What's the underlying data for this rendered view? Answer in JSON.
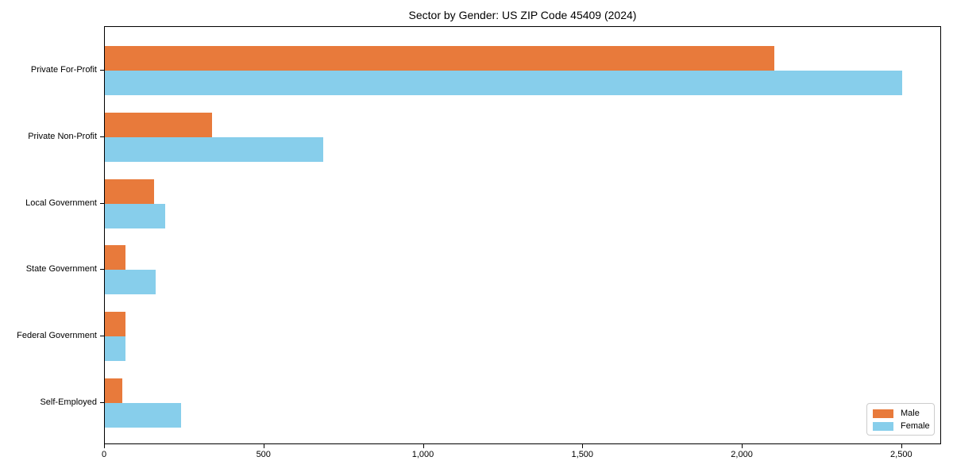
{
  "title": "Sector by Gender: US ZIP Code 45409 (2024)",
  "colors": {
    "male": "#e87a3b",
    "female": "#87ceeb",
    "axis": "#000000",
    "legend_border": "#cccccc",
    "background": "#ffffff"
  },
  "legend": {
    "position": "lower right",
    "items": [
      {
        "label": "Male",
        "color": "#e87a3b"
      },
      {
        "label": "Female",
        "color": "#87ceeb"
      }
    ]
  },
  "chart_data": {
    "type": "bar",
    "orientation": "horizontal",
    "title": "Sector by Gender: US ZIP Code 45409 (2024)",
    "categories": [
      "Private For-Profit",
      "Private Non-Profit",
      "Local Government",
      "State Government",
      "Federal Government",
      "Self-Employed"
    ],
    "series": [
      {
        "name": "Male",
        "color": "#e87a3b",
        "values": [
          2100,
          335,
          155,
          65,
          65,
          55
        ]
      },
      {
        "name": "Female",
        "color": "#87ceeb",
        "values": [
          2500,
          685,
          190,
          160,
          64,
          240
        ]
      }
    ],
    "xlabel": "",
    "ylabel": "",
    "xlim": [
      0,
      2625
    ],
    "xticks": [
      0,
      500,
      1000,
      1500,
      2000,
      2500
    ],
    "xtick_labels": [
      "0",
      "500",
      "1,000",
      "1,500",
      "2,000",
      "2,500"
    ],
    "grid": false,
    "legend_position": "lower right"
  }
}
